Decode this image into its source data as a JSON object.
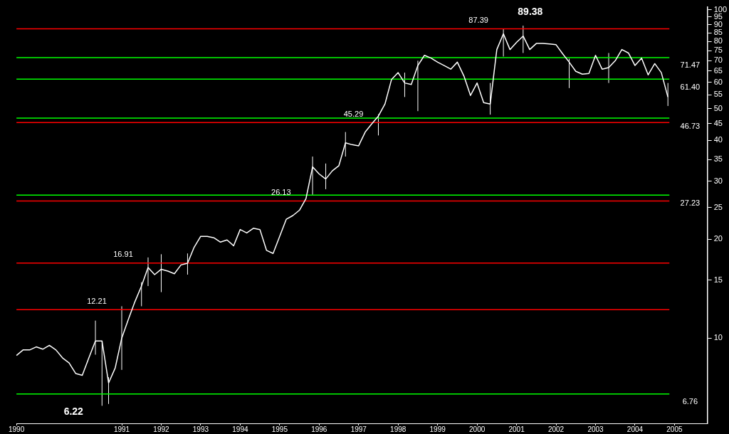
{
  "chart_data": {
    "type": "line",
    "categories": [
      "1990",
      null,
      null,
      null,
      null,
      null,
      null,
      null,
      null,
      null,
      null,
      null,
      null,
      null,
      null,
      null,
      "1991",
      null,
      null,
      null,
      null,
      null,
      "1992",
      null,
      null,
      null,
      null,
      null,
      "1993",
      null,
      null,
      null,
      null,
      null,
      "1994",
      null,
      null,
      null,
      null,
      null,
      "1995",
      null,
      null,
      null,
      null,
      null,
      "1996",
      null,
      null,
      null,
      null,
      null,
      "1997",
      null,
      null,
      null,
      null,
      null,
      "1998",
      null,
      null,
      null,
      null,
      null,
      "1999",
      null,
      null,
      null,
      null,
      null,
      "2000",
      null,
      null,
      null,
      null,
      null,
      "2001",
      null,
      null,
      null,
      null,
      null,
      "2002",
      null,
      null,
      null,
      null,
      null,
      "2003",
      null,
      null,
      null,
      null,
      null,
      "2004",
      null,
      null,
      null,
      null,
      null,
      "2005",
      null,
      null,
      null,
      null,
      null
    ],
    "series": [
      {
        "color": "#ffffff",
        "values": [
          8.85,
          9.2,
          9.2,
          9.4,
          9.25,
          9.5,
          9.2,
          8.7,
          8.4,
          7.8,
          7.7,
          8.7,
          9.8,
          9.8,
          7.3,
          8.1,
          10.0,
          11.4,
          12.9,
          14.4,
          16.4,
          15.6,
          16.2,
          16.0,
          15.7,
          16.7,
          16.9,
          18.9,
          20.4,
          20.4,
          20.2,
          19.6,
          19.9,
          19.1,
          21.4,
          20.9,
          21.6,
          21.4,
          18.5,
          18.1,
          20.4,
          23.0,
          23.6,
          24.5,
          26.6,
          33.2,
          31.6,
          30.5,
          32.3,
          33.5,
          39.3,
          38.8,
          38.5,
          42.4,
          44.9,
          47.4,
          51.6,
          61.3,
          64.3,
          59.8,
          59.2,
          67.6,
          72.6,
          71.2,
          69.2,
          67.6,
          65.9,
          69.2,
          62.8,
          54.8,
          59.8,
          52.1,
          51.6,
          75.6,
          84.4,
          75.6,
          79.5,
          83.1,
          75.6,
          78.9,
          78.9,
          78.6,
          78.2,
          73.4,
          69.2,
          64.9,
          63.6,
          63.9,
          72.6,
          65.9,
          66.6,
          69.9,
          75.6,
          73.8,
          67.6,
          71.2,
          63.3,
          68.5,
          64.3,
          54.2,
          null,
          null,
          null,
          null,
          null,
          null
        ],
        "errors": [
          null,
          null,
          null,
          null,
          null,
          null,
          null,
          null,
          null,
          null,
          null,
          null,
          [
            8.9,
            11.3
          ],
          [
            6.22,
            9.8
          ],
          [
            6.3,
            7.6
          ],
          null,
          [
            8.0,
            12.5
          ],
          null,
          null,
          [
            12.5,
            14.8
          ],
          [
            14.4,
            17.6
          ],
          null,
          [
            13.8,
            18.0
          ],
          null,
          null,
          null,
          [
            15.6,
            18.1
          ],
          null,
          null,
          null,
          null,
          null,
          null,
          null,
          null,
          null,
          null,
          null,
          null,
          null,
          null,
          null,
          null,
          null,
          null,
          [
            27.3,
            35.7
          ],
          null,
          [
            28.4,
            34
          ],
          null,
          null,
          [
            35.7,
            42.4
          ],
          null,
          null,
          null,
          null,
          [
            41.4,
            48
          ],
          null,
          null,
          null,
          [
            54.2,
            64.3
          ],
          null,
          [
            49.1,
            69.9
          ],
          null,
          null,
          null,
          null,
          null,
          null,
          null,
          null,
          null,
          null,
          [
            47.9,
            59.8
          ],
          null,
          [
            72,
            87.5
          ],
          null,
          null,
          [
            73.8,
            89.38
          ],
          null,
          null,
          null,
          null,
          null,
          null,
          [
            57.7,
            70.9
          ],
          null,
          null,
          null,
          null,
          null,
          [
            59.8,
            73.8
          ],
          null,
          null,
          null,
          null,
          null,
          null,
          null,
          null,
          [
            50.9,
            59.8
          ],
          null,
          null,
          null,
          null,
          null,
          null
        ]
      }
    ],
    "log": "y",
    "ylim": [
      5.5,
      102
    ],
    "yticks": [
      10,
      15,
      20,
      25,
      30,
      35,
      40,
      45,
      50,
      55,
      60,
      65,
      70,
      75,
      80,
      85,
      90,
      95,
      100
    ],
    "marker": "none",
    "ref_lines": [
      {
        "axis": "y",
        "value": 87.39,
        "label": "87.39",
        "color": "#ff0000"
      },
      {
        "axis": "y",
        "value": 71.47,
        "label": "71.47",
        "color": "#00ff00"
      },
      {
        "axis": "y",
        "value": 61.4,
        "label": "61.40",
        "color": "#00ff00"
      },
      {
        "axis": "y",
        "value": 46.73,
        "label": "46.73",
        "color": "#00ff00"
      },
      {
        "axis": "y",
        "value": 45.29,
        "label": "45.29",
        "color": "#ff0000"
      },
      {
        "axis": "y",
        "value": 27.23,
        "label": "27.23",
        "color": "#00ff00"
      },
      {
        "axis": "y",
        "value": 26.13,
        "label": "26.13",
        "color": "#ff0000"
      },
      {
        "axis": "y",
        "value": 16.91,
        "label": "16.91",
        "color": "#ff0000"
      },
      {
        "axis": "y",
        "value": 12.21,
        "label": "12.21",
        "color": "#ff0000"
      },
      {
        "axis": "y",
        "value": 6.76,
        "label": "6.76",
        "color": "#00ff00"
      }
    ],
    "annotations": [
      {
        "text": "89.38",
        "y": 89.38
      },
      "6.22"
    ]
  }
}
